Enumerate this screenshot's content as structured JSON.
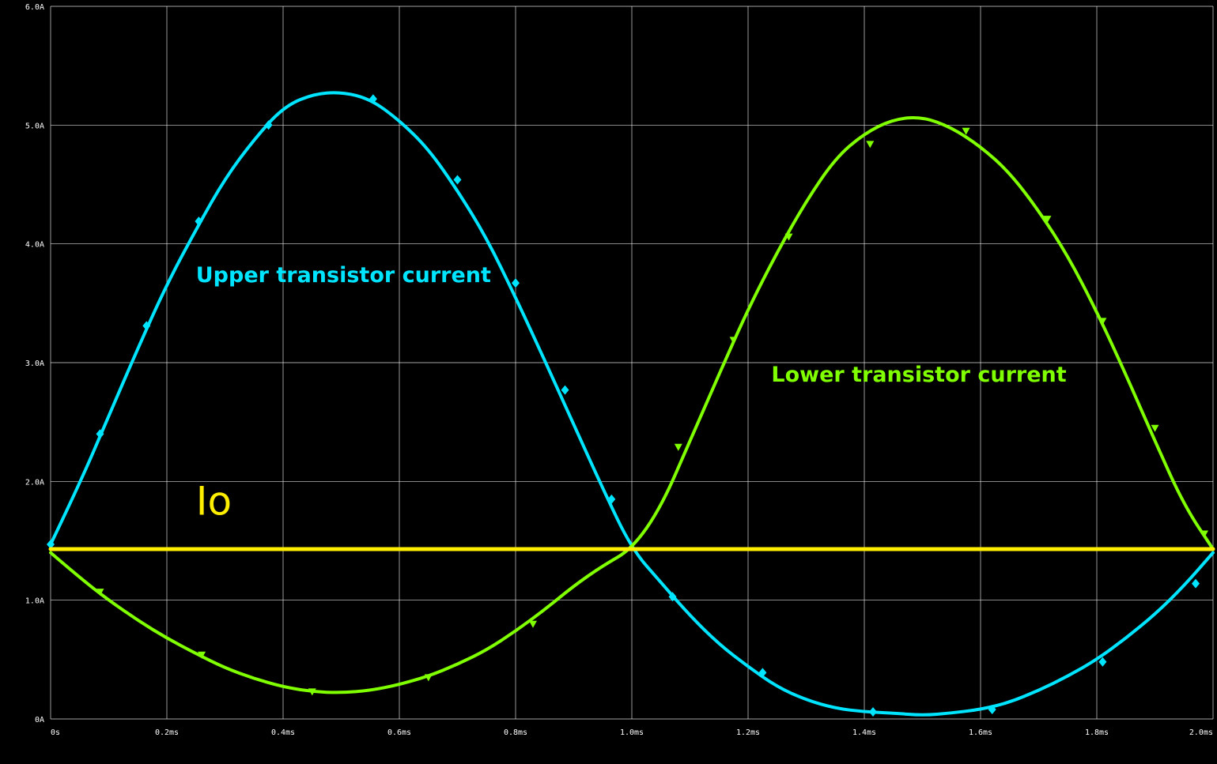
{
  "chart_data": {
    "type": "line",
    "xlim": [
      0,
      2.0
    ],
    "ylim": [
      0,
      6.0
    ],
    "x_unit": "ms",
    "y_unit": "A",
    "x_ticks": [
      "0s",
      "0.2ms",
      "0.4ms",
      "0.6ms",
      "0.8ms",
      "1.0ms",
      "1.2ms",
      "1.4ms",
      "1.6ms",
      "1.8ms",
      "2.0ms"
    ],
    "x_tick_values": [
      0,
      0.2,
      0.4,
      0.6,
      0.8,
      1.0,
      1.2,
      1.4,
      1.6,
      1.8,
      2.0
    ],
    "y_ticks": [
      "0A",
      "1.0A",
      "2.0A",
      "3.0A",
      "4.0A",
      "5.0A",
      "6.0A"
    ],
    "y_tick_values": [
      0,
      1.0,
      2.0,
      3.0,
      4.0,
      5.0,
      6.0
    ],
    "grid": true,
    "background": "#000000",
    "grid_color": "#ffffff",
    "annotations": [
      {
        "text": "Upper transistor current",
        "color": "#00e5ff",
        "x": 0.25,
        "y": 3.68
      },
      {
        "text": "Lower transistor current",
        "color": "#80ff00",
        "x": 1.24,
        "y": 2.84
      },
      {
        "text": "Io",
        "color": "#ffee00",
        "x": 0.25,
        "y": 1.72
      }
    ],
    "series": [
      {
        "color": "#00e5ff",
        "marker": "diamond",
        "x": [
          0,
          0.05,
          0.1,
          0.15,
          0.2,
          0.25,
          0.3,
          0.35,
          0.4,
          0.45,
          0.5,
          0.55,
          0.6,
          0.65,
          0.7,
          0.75,
          0.8,
          0.85,
          0.9,
          0.95,
          1.0,
          1.05,
          1.1,
          1.15,
          1.2,
          1.25,
          1.3,
          1.35,
          1.4,
          1.45,
          1.5,
          1.55,
          1.6,
          1.65,
          1.7,
          1.75,
          1.8,
          1.85,
          1.9,
          1.95,
          2.0
        ],
        "values": [
          1.47,
          1.98,
          2.55,
          3.12,
          3.66,
          4.12,
          4.55,
          4.88,
          5.15,
          5.26,
          5.28,
          5.22,
          5.04,
          4.8,
          4.45,
          4.05,
          3.55,
          3.02,
          2.48,
          1.94,
          1.43,
          1.15,
          0.87,
          0.63,
          0.44,
          0.27,
          0.16,
          0.09,
          0.06,
          0.05,
          0.03,
          0.05,
          0.08,
          0.14,
          0.24,
          0.36,
          0.5,
          0.68,
          0.88,
          1.12,
          1.4
        ],
        "marker_x": [
          0,
          0.085,
          0.165,
          0.255,
          0.375,
          0.555,
          0.7,
          0.8,
          0.885,
          0.965,
          1.07,
          1.225,
          1.415,
          1.62,
          1.81,
          1.97
        ],
        "marker_values": [
          1.47,
          2.4,
          3.31,
          4.19,
          5.0,
          5.22,
          4.54,
          3.67,
          2.77,
          1.85,
          1.03,
          0.39,
          0.06,
          0.08,
          0.48,
          1.14
        ]
      },
      {
        "color": "#80ff00",
        "marker": "triangle",
        "x": [
          0,
          0.05,
          0.1,
          0.15,
          0.2,
          0.25,
          0.3,
          0.35,
          0.4,
          0.45,
          0.5,
          0.55,
          0.6,
          0.65,
          0.7,
          0.75,
          0.8,
          0.85,
          0.9,
          0.95,
          1.0,
          1.05,
          1.1,
          1.15,
          1.2,
          1.25,
          1.3,
          1.35,
          1.4,
          1.45,
          1.5,
          1.55,
          1.6,
          1.65,
          1.7,
          1.75,
          1.8,
          1.85,
          1.9,
          1.95,
          2.0
        ],
        "values": [
          1.4,
          1.19,
          1.0,
          0.83,
          0.68,
          0.55,
          0.43,
          0.34,
          0.27,
          0.23,
          0.22,
          0.24,
          0.29,
          0.36,
          0.46,
          0.58,
          0.74,
          0.92,
          1.12,
          1.29,
          1.43,
          1.78,
          2.34,
          2.9,
          3.45,
          3.93,
          4.36,
          4.72,
          4.93,
          5.05,
          5.07,
          4.98,
          4.82,
          4.6,
          4.28,
          3.9,
          3.43,
          2.9,
          2.34,
          1.8,
          1.43
        ],
        "marker_x": [
          0.085,
          0.26,
          0.45,
          0.65,
          0.83,
          1.08,
          1.175,
          1.27,
          1.41,
          1.575,
          1.715,
          1.81,
          1.9,
          1.985
        ],
        "marker_values": [
          1.07,
          0.54,
          0.23,
          0.35,
          0.8,
          2.29,
          3.19,
          4.06,
          4.84,
          4.95,
          4.21,
          3.35,
          2.45,
          1.56
        ]
      },
      {
        "color": "#ffee00",
        "marker": "none",
        "x": [
          0,
          2.0
        ],
        "values": [
          1.43,
          1.43
        ]
      }
    ]
  }
}
